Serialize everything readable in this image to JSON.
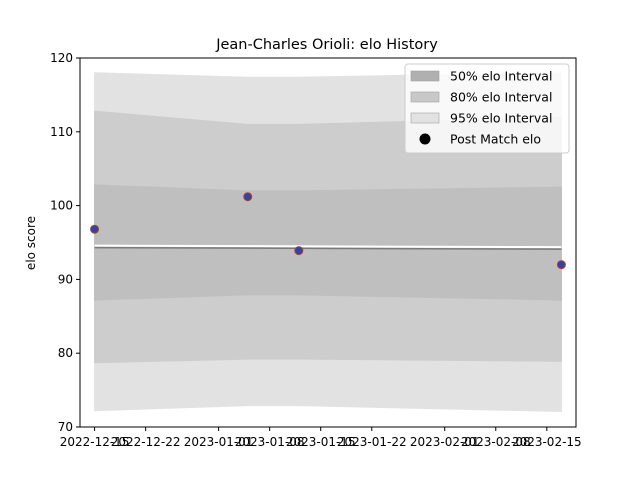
{
  "chart_data": {
    "type": "line",
    "title": "Jean-Charles Orioli: elo History",
    "xlabel": "",
    "ylabel": "elo score",
    "xlim": [
      "2022-12-13",
      "2023-02-19"
    ],
    "ylim": [
      70,
      120
    ],
    "x_ticks": [
      "2022-12-15",
      "2022-12-22",
      "2023-01-01",
      "2023-01-08",
      "2023-01-15",
      "2023-01-22",
      "2023-02-01",
      "2023-02-08",
      "2023-02-15"
    ],
    "x_tick_labels": [
      "2022-12-15",
      "2022-12-22",
      "2023-01-01",
      "2023-01-08",
      "2023-01-15",
      "2023-01-22",
      "2023-02-01",
      "2023-02-08",
      "2023-02-15"
    ],
    "y_ticks": [
      70,
      80,
      90,
      100,
      110,
      120
    ],
    "y_tick_labels": [
      "70",
      "80",
      "90",
      "100",
      "110",
      "120"
    ],
    "grid": false,
    "legend_position": "top-right",
    "bands": {
      "x": [
        "2022-12-15",
        "2023-01-05",
        "2023-01-12",
        "2023-02-17"
      ],
      "interval_95": {
        "name": "95% elo Interval",
        "lower": [
          72.2,
          72.9,
          72.9,
          72.1
        ],
        "upper": [
          118.0,
          117.4,
          117.4,
          118.0
        ],
        "color": "#e2e2e2"
      },
      "interval_80": {
        "name": "80% elo Interval",
        "lower": [
          78.7,
          79.2,
          79.2,
          78.9
        ],
        "upper": [
          112.8,
          111.0,
          111.0,
          112.0
        ],
        "color": "#cdcdcd"
      },
      "interval_50": {
        "name": "50% elo Interval",
        "lower": [
          87.2,
          87.9,
          87.9,
          87.2
        ],
        "upper": [
          102.8,
          102.0,
          102.0,
          102.5
        ],
        "color": "#bfbfbf"
      }
    },
    "mean_line": {
      "x": [
        "2022-12-15",
        "2023-02-17"
      ],
      "y": [
        94.3,
        94.1
      ],
      "color": "#7a7a7a"
    },
    "series": [
      {
        "name": "Post Match elo",
        "x": [
          "2022-12-15",
          "2023-01-05",
          "2023-01-12",
          "2023-02-17"
        ],
        "y": [
          96.8,
          101.2,
          93.9,
          92.0
        ],
        "color": "#2848a8",
        "edge_color": "#c0392b"
      }
    ],
    "legend": [
      {
        "label": "50% elo Interval",
        "swatch": "band",
        "color": "#b0b0b0"
      },
      {
        "label": "80% elo Interval",
        "swatch": "band",
        "color": "#c8c8c8"
      },
      {
        "label": "95% elo Interval",
        "swatch": "band",
        "color": "#e2e2e2"
      },
      {
        "label": "Post Match elo",
        "swatch": "dot",
        "color": "#000000"
      }
    ]
  }
}
